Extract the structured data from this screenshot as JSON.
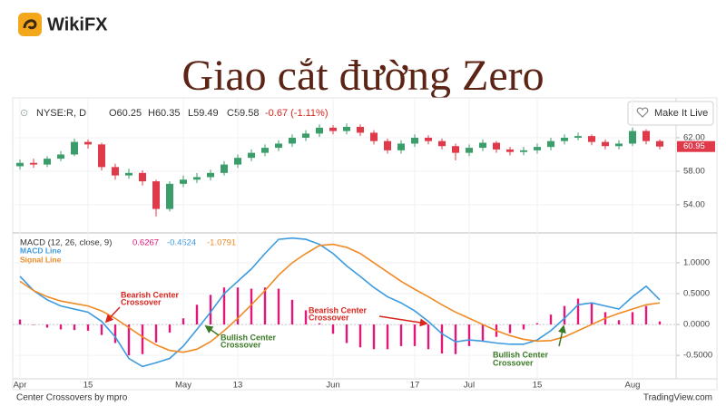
{
  "brand": "WikiFX",
  "heading": "Giao cắt đường Zero",
  "button": "Make It Live",
  "footer": {
    "left": "Center Crossovers by mpro",
    "right": "TradingView.com"
  },
  "chart_data": [
    {
      "type": "candlestick",
      "symbol": "NYSE:R, D",
      "ohlc_readout": [
        "O60.25",
        "H60.35",
        "L59.49",
        "C59.58"
      ],
      "change_readout": "-0.67 (-1.11%)",
      "categories": [
        "Apr",
        null,
        null,
        null,
        null,
        "15",
        null,
        null,
        null,
        null,
        null,
        null,
        "May",
        null,
        null,
        null,
        "13",
        null,
        null,
        null,
        null,
        null,
        null,
        "Jun",
        null,
        null,
        null,
        null,
        null,
        "17",
        null,
        null,
        null,
        "Jul",
        null,
        null,
        null,
        null,
        "15",
        null,
        null,
        null,
        null,
        null,
        null,
        "Aug",
        null,
        null
      ],
      "open": [
        58.6,
        59.0,
        58.8,
        59.5,
        60.0,
        61.5,
        61.2,
        58.5,
        57.5,
        57.8,
        56.8,
        53.5,
        56.5,
        57.0,
        57.3,
        57.8,
        58.8,
        59.6,
        60.2,
        60.8,
        61.3,
        62.0,
        62.5,
        63.2,
        62.8,
        63.3,
        62.6,
        61.6,
        60.5,
        61.3,
        62.0,
        61.6,
        61.0,
        60.2,
        60.8,
        61.4,
        60.6,
        60.3,
        60.5,
        60.9,
        61.6,
        62.0,
        62.2,
        61.5,
        61.0,
        61.3,
        62.8,
        61.6
      ],
      "high": [
        59.4,
        59.5,
        59.8,
        60.4,
        61.9,
        61.8,
        61.4,
        58.9,
        58.3,
        58.1,
        57.0,
        56.8,
        57.5,
        57.8,
        58.2,
        59.2,
        60.0,
        60.6,
        61.2,
        61.7,
        62.4,
        62.9,
        63.6,
        63.5,
        63.7,
        63.6,
        62.9,
        61.9,
        61.7,
        62.4,
        62.3,
        61.9,
        61.3,
        61.2,
        61.8,
        61.6,
        60.9,
        60.9,
        61.3,
        62.0,
        62.4,
        62.6,
        62.4,
        61.8,
        61.7,
        63.2,
        63.0,
        61.8
      ],
      "low": [
        58.2,
        58.4,
        58.5,
        59.2,
        59.8,
        60.7,
        58.1,
        57.0,
        57.1,
        56.3,
        52.6,
        53.2,
        56.1,
        56.6,
        56.9,
        57.5,
        58.4,
        59.2,
        59.8,
        60.4,
        60.9,
        61.6,
        62.1,
        62.4,
        62.4,
        62.2,
        61.2,
        60.1,
        60.1,
        60.9,
        61.2,
        60.6,
        59.3,
        59.8,
        60.4,
        60.2,
        59.9,
        59.9,
        60.1,
        60.5,
        61.2,
        61.7,
        61.1,
        60.6,
        60.6,
        61.0,
        61.2,
        60.6
      ],
      "close": [
        59.0,
        58.8,
        59.5,
        60.0,
        61.5,
        61.2,
        58.5,
        57.5,
        57.8,
        56.8,
        53.5,
        56.5,
        57.0,
        57.3,
        57.8,
        58.8,
        59.6,
        60.2,
        60.8,
        61.3,
        62.0,
        62.5,
        63.2,
        62.8,
        63.3,
        62.6,
        61.6,
        60.5,
        61.3,
        62.0,
        61.6,
        61.0,
        60.2,
        60.8,
        61.4,
        60.6,
        60.3,
        60.5,
        60.9,
        61.6,
        62.0,
        62.2,
        61.5,
        61.0,
        61.3,
        62.8,
        61.6,
        60.95
      ],
      "up_color": "#3a9d6a",
      "down_color": "#e0394a",
      "last_price": {
        "value": 60.95,
        "label": "60.95"
      },
      "ylim": [
        50.86,
        66.0
      ],
      "yticks": [
        {
          "value": 62,
          "label": "62.00"
        },
        {
          "value": 58,
          "label": "58.00"
        },
        {
          "value": 54,
          "label": "54.00"
        }
      ],
      "grid": true
    },
    {
      "type": "macd",
      "title": "MACD (12, 26, close, 9)",
      "readouts": [
        0.6267,
        -0.4524,
        -1.0791
      ],
      "histogram": {
        "color": "#e2177a",
        "values": [
          0.08,
          0.0,
          -0.05,
          -0.08,
          -0.09,
          -0.1,
          -0.17,
          -0.3,
          -0.5,
          -0.48,
          -0.29,
          -0.13,
          0.1,
          0.32,
          0.48,
          0.6,
          0.6,
          0.58,
          0.6,
          0.58,
          0.4,
          0.23,
          0.02,
          -0.15,
          -0.3,
          -0.37,
          -0.4,
          -0.4,
          -0.35,
          -0.35,
          -0.4,
          -0.47,
          -0.48,
          -0.35,
          -0.27,
          -0.2,
          -0.14,
          -0.08,
          0.02,
          0.16,
          0.3,
          0.42,
          0.35,
          0.2,
          0.07,
          0.2,
          0.3,
          0.05
        ]
      },
      "series": [
        {
          "name": "MACD Line",
          "color": "#3c9be0",
          "values": [
            0.78,
            0.55,
            0.4,
            0.3,
            0.25,
            0.2,
            0.05,
            -0.2,
            -0.55,
            -0.68,
            -0.62,
            -0.55,
            -0.35,
            -0.08,
            0.2,
            0.5,
            0.7,
            0.9,
            1.15,
            1.38,
            1.4,
            1.38,
            1.3,
            1.15,
            0.95,
            0.78,
            0.6,
            0.45,
            0.35,
            0.22,
            0.05,
            -0.15,
            -0.28,
            -0.25,
            -0.27,
            -0.3,
            -0.32,
            -0.32,
            -0.25,
            -0.1,
            0.1,
            0.32,
            0.35,
            0.3,
            0.25,
            0.45,
            0.62,
            0.4
          ]
        },
        {
          "name": "Signal Line",
          "color": "#f08a24",
          "values": [
            0.7,
            0.55,
            0.45,
            0.38,
            0.34,
            0.3,
            0.22,
            0.1,
            -0.05,
            -0.2,
            -0.33,
            -0.42,
            -0.45,
            -0.4,
            -0.28,
            -0.1,
            0.1,
            0.32,
            0.55,
            0.8,
            1.0,
            1.15,
            1.28,
            1.3,
            1.25,
            1.15,
            1.0,
            0.85,
            0.7,
            0.57,
            0.45,
            0.32,
            0.2,
            0.1,
            0.0,
            -0.1,
            -0.18,
            -0.24,
            -0.27,
            -0.26,
            -0.2,
            -0.1,
            0.0,
            0.1,
            0.18,
            0.25,
            0.32,
            0.35
          ]
        }
      ],
      "ylim": [
        -0.88,
        1.44
      ],
      "yticks": [
        {
          "value": 1,
          "label": "1.0000"
        },
        {
          "value": 0.5,
          "label": "0.5000"
        },
        {
          "value": 0,
          "label": "0.0000"
        },
        {
          "value": -0.5,
          "label": "-0.5000"
        }
      ],
      "annotations": [
        {
          "lines": [
            "Bearish Center",
            "Crossover"
          ]
        },
        {
          "lines": [
            "Bullish Center",
            "Crossover"
          ]
        },
        {
          "lines": [
            "Bearish Center",
            "Crossover"
          ]
        },
        {
          "lines": [
            "Bullish Center",
            "Crossover"
          ]
        }
      ]
    }
  ]
}
